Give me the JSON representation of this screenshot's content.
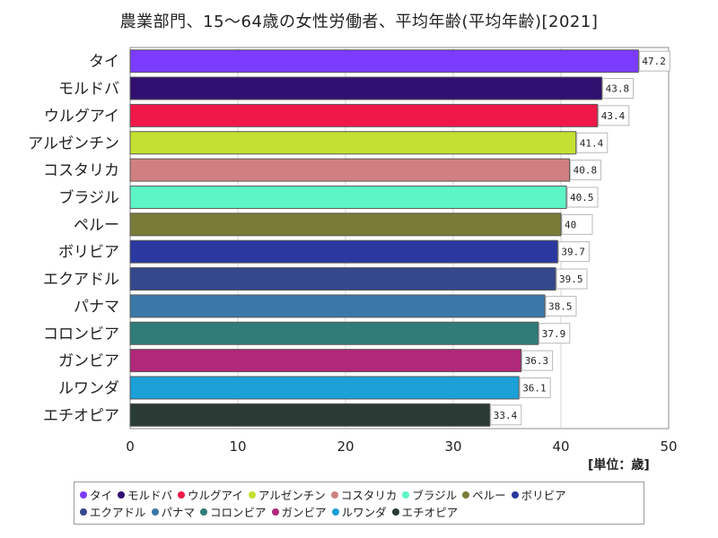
{
  "title": "農業部門、15～64歳の女性労働者、平均年齢(平均年齢)[2021]",
  "unit": "[単位：歳]",
  "chart_data": {
    "type": "bar",
    "orientation": "horizontal",
    "categories": [
      "タイ",
      "モルドバ",
      "ウルグアイ",
      "アルゼンチン",
      "コスタリカ",
      "ブラジル",
      "ペルー",
      "ボリビア",
      "エクアドル",
      "パナマ",
      "コロンビア",
      "ガンビア",
      "ルワンダ",
      "エチオピア"
    ],
    "values": [
      47.2,
      43.8,
      43.4,
      41.4,
      40.8,
      40.5,
      40,
      39.7,
      39.5,
      38.5,
      37.9,
      36.3,
      36.1,
      33.4
    ],
    "value_labels": [
      "47.2",
      "43.8",
      "43.4",
      "41.4",
      "40.8",
      "40.5",
      "40",
      "39.7",
      "39.5",
      "38.5",
      "37.9",
      "36.3",
      "36.1",
      "33.4"
    ],
    "colors": [
      "#7b3cff",
      "#2f1070",
      "#f01848",
      "#c4e030",
      "#d08080",
      "#5ef5c6",
      "#7b7b38",
      "#2a38a0",
      "#34488c",
      "#3a78a8",
      "#2f7c78",
      "#b0287a",
      "#1ba0d8",
      "#2a3a34"
    ],
    "xlim": [
      0,
      50
    ],
    "xticks": [
      "0",
      "10",
      "20",
      "30",
      "40",
      "50"
    ],
    "xlabel": "",
    "ylabel": "",
    "grid": true,
    "legend_position": "bottom"
  }
}
